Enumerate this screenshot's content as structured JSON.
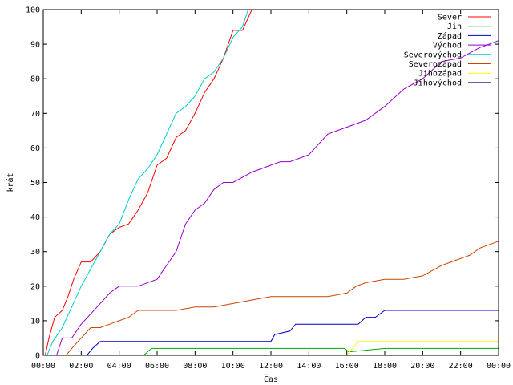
{
  "chart_data": {
    "type": "line",
    "title": "",
    "xlabel": "Čas",
    "ylabel": "krát",
    "xlim": [
      0,
      24
    ],
    "ylim": [
      0,
      100
    ],
    "x_ticks": [
      {
        "value": 0,
        "label": "00:00"
      },
      {
        "value": 2,
        "label": "02:00"
      },
      {
        "value": 4,
        "label": "04:00"
      },
      {
        "value": 6,
        "label": "06:00"
      },
      {
        "value": 8,
        "label": "08:00"
      },
      {
        "value": 10,
        "label": "10:00"
      },
      {
        "value": 12,
        "label": "12:00"
      },
      {
        "value": 14,
        "label": "14:00"
      },
      {
        "value": 16,
        "label": "16:00"
      },
      {
        "value": 18,
        "label": "18:00"
      },
      {
        "value": 20,
        "label": "20:00"
      },
      {
        "value": 22,
        "label": "22:00"
      },
      {
        "value": 24,
        "label": "00:00"
      }
    ],
    "y_ticks": [
      {
        "value": 0,
        "label": "0"
      },
      {
        "value": 10,
        "label": "10"
      },
      {
        "value": 20,
        "label": "20"
      },
      {
        "value": 30,
        "label": "30"
      },
      {
        "value": 40,
        "label": "40"
      },
      {
        "value": 50,
        "label": "50"
      },
      {
        "value": 60,
        "label": "60"
      },
      {
        "value": 70,
        "label": "70"
      },
      {
        "value": 80,
        "label": "80"
      },
      {
        "value": 90,
        "label": "90"
      },
      {
        "value": 100,
        "label": "100"
      }
    ],
    "grid": false,
    "legend_position": "top-right",
    "series": [
      {
        "name": "Sever",
        "color": "#ff0000",
        "x": [
          0.1,
          0.3,
          0.6,
          1.0,
          1.3,
          1.6,
          2.0,
          2.5,
          3.0,
          3.5,
          4.0,
          4.5,
          5.0,
          5.5,
          6.0,
          6.5,
          7.0,
          7.5,
          8.0,
          8.5,
          9.0,
          9.5,
          10.0,
          10.5,
          11.0
        ],
        "y": [
          0,
          5,
          11,
          13,
          17,
          22,
          27,
          27,
          30,
          35,
          37,
          38,
          42,
          47,
          55,
          57,
          63,
          65,
          70,
          76,
          80,
          86,
          94,
          94,
          100
        ]
      },
      {
        "name": "Jih",
        "color": "#00aa00",
        "x": [
          0,
          5.3,
          5.7,
          6.0,
          8.0,
          10.0,
          12.0,
          14.0,
          15.9,
          16.1,
          18.0,
          20.0,
          22.0,
          24.0
        ],
        "y": [
          0,
          0,
          2,
          2,
          2,
          2,
          2,
          2,
          2,
          1,
          2,
          2,
          2,
          2
        ]
      },
      {
        "name": "Západ",
        "color": "#0000cc",
        "x": [
          0,
          2.3,
          2.6,
          3.0,
          4.0,
          6.0,
          8.0,
          10.0,
          12.0,
          12.2,
          13.0,
          13.3,
          15.0,
          16.6,
          17.0,
          17.5,
          18.0,
          20.0,
          22.0,
          24.0
        ],
        "y": [
          0,
          0,
          2,
          4,
          4,
          4,
          4,
          4,
          4,
          6,
          7,
          9,
          9,
          9,
          11,
          11,
          13,
          13,
          13,
          13
        ]
      },
      {
        "name": "Východ",
        "color": "#9900cc",
        "x": [
          0,
          0.7,
          1.0,
          1.5,
          2.0,
          2.5,
          3.0,
          3.5,
          4.0,
          5.0,
          6.0,
          6.5,
          7.0,
          7.5,
          8.0,
          8.5,
          9.0,
          9.5,
          10.0,
          11.0,
          12.0,
          12.5,
          13.0,
          14.0,
          15.0,
          16.0,
          17.0,
          18.0,
          19.0,
          20.0,
          21.0,
          22.0,
          23.0,
          24.0
        ],
        "y": [
          0,
          0,
          5,
          5,
          9,
          12,
          15,
          18,
          20,
          20,
          22,
          26,
          30,
          38,
          42,
          44,
          48,
          50,
          50,
          53,
          55,
          56,
          56,
          58,
          64,
          66,
          68,
          72,
          77,
          80,
          85,
          86,
          89,
          91
        ]
      },
      {
        "name": "Severovýchod",
        "color": "#00cccc",
        "x": [
          0,
          0.2,
          0.5,
          1.0,
          1.5,
          2.0,
          2.5,
          3.0,
          3.5,
          4.0,
          4.5,
          5.0,
          5.5,
          6.0,
          6.5,
          7.0,
          7.5,
          8.0,
          8.5,
          9.0,
          9.5,
          10.0,
          10.5,
          10.8
        ],
        "y": [
          0,
          0,
          4,
          8,
          14,
          20,
          25,
          30,
          35,
          38,
          45,
          51,
          54,
          58,
          64,
          70,
          72,
          75,
          80,
          82,
          86,
          92,
          95,
          100
        ]
      },
      {
        "name": "Severozápad",
        "color": "#cc4400",
        "x": [
          0,
          1.2,
          1.5,
          2.0,
          2.5,
          3.0,
          3.5,
          4.0,
          4.5,
          5.0,
          6.0,
          7.0,
          8.0,
          9.0,
          10.0,
          11.0,
          12.0,
          13.0,
          14.0,
          15.0,
          16.0,
          16.5,
          17.0,
          18.0,
          19.0,
          20.0,
          21.0,
          21.5,
          22.0,
          22.5,
          23.0,
          24.0
        ],
        "y": [
          0,
          0,
          2,
          5,
          8,
          8,
          9,
          10,
          11,
          13,
          13,
          13,
          14,
          14,
          15,
          16,
          17,
          17,
          17,
          17,
          18,
          20,
          21,
          22,
          22,
          23,
          26,
          27,
          28,
          29,
          31,
          33
        ]
      },
      {
        "name": "Jihozápad",
        "color": "#ffff00",
        "x": [
          0,
          16.0,
          16.3,
          16.6,
          17.0,
          18.0,
          20.0,
          22.0,
          24.0
        ],
        "y": [
          0,
          0,
          2,
          4,
          4,
          4,
          4,
          4,
          4
        ]
      },
      {
        "name": "Jihovýchod",
        "color": "#000080",
        "x": [
          0,
          24.0
        ],
        "y": [
          0,
          0
        ]
      }
    ]
  }
}
